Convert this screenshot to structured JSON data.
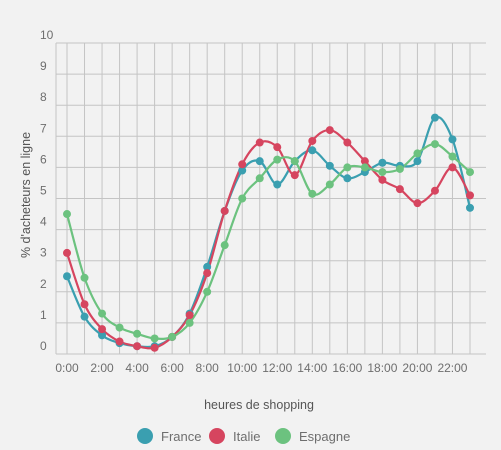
{
  "chart_data": {
    "type": "line",
    "title": "",
    "xlabel": "heures de shopping",
    "ylabel": "% d'acheteurs en ligne",
    "x": [
      0,
      1,
      2,
      3,
      4,
      5,
      6,
      7,
      8,
      9,
      10,
      11,
      12,
      13,
      14,
      15,
      16,
      17,
      18,
      19,
      20,
      21,
      22,
      23
    ],
    "x_ticks": [
      0,
      2,
      4,
      6,
      8,
      10,
      12,
      14,
      16,
      18,
      20,
      22
    ],
    "x_tick_labels": [
      "0:00",
      "2:00",
      "4:00",
      "6:00",
      "8:00",
      "10:00",
      "12:00",
      "14:00",
      "16:00",
      "18:00",
      "20:00",
      "22:00"
    ],
    "ylim": [
      0,
      10
    ],
    "y_ticks": [
      0,
      1,
      2,
      3,
      4,
      5,
      6,
      7,
      8,
      9,
      10
    ],
    "y_tick_labels": [
      "0",
      "1",
      "2",
      "3",
      "4",
      "5",
      "6",
      "7",
      "8",
      "9",
      "10"
    ],
    "grid": true,
    "legend_position": "bottom",
    "series": [
      {
        "name": "France",
        "color": "#3a9fb0",
        "values": [
          2.5,
          1.2,
          0.6,
          0.35,
          0.25,
          0.25,
          0.55,
          1.3,
          2.8,
          4.6,
          5.9,
          6.2,
          5.45,
          6.2,
          6.55,
          6.05,
          5.65,
          5.85,
          6.15,
          6.05,
          6.2,
          7.6,
          6.9,
          4.7
        ]
      },
      {
        "name": "Italie",
        "color": "#d6455f",
        "values": [
          3.25,
          1.6,
          0.8,
          0.4,
          0.25,
          0.2,
          0.55,
          1.25,
          2.6,
          4.6,
          6.1,
          6.8,
          6.65,
          5.75,
          6.85,
          7.2,
          6.8,
          6.2,
          5.6,
          5.3,
          4.85,
          5.25,
          6.0,
          5.1
        ]
      },
      {
        "name": "Espagne",
        "color": "#6cc27f",
        "values": [
          4.5,
          2.45,
          1.3,
          0.85,
          0.65,
          0.5,
          0.55,
          1.0,
          2.0,
          3.5,
          5.0,
          5.65,
          6.25,
          6.2,
          5.15,
          5.45,
          6.0,
          6.0,
          5.85,
          5.95,
          6.45,
          6.75,
          6.35,
          5.85
        ]
      }
    ]
  }
}
